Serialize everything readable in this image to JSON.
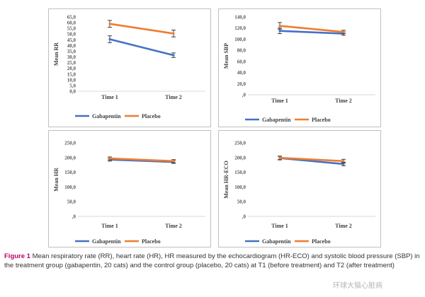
{
  "caption": {
    "label": "Figure 1",
    "text": "Mean respiratory rate (RR), heart rate (HR), HR measured by the echocardiogram (HR-ECO) and systolic blood pressure (SBP) in the treatment group (gabapentin, 20 cats) and the control group (placebo, 20 cats) at T1 (before treatment) and T2 (after treatment)"
  },
  "watermark": "环球大猫心脏病",
  "colors": {
    "gabapentin": "#4472C4",
    "placebo": "#ED7D31",
    "frame": "#bfbfbf"
  },
  "chart_data": [
    {
      "type": "line",
      "categories": [
        "Time 1",
        "Time 2"
      ],
      "ylabel": "Mean RR",
      "ylim": [
        0,
        65
      ],
      "yticks": [
        "0,0",
        "5,0",
        "10,0",
        "15,0",
        "20,0",
        "25,0",
        "30,0",
        "35,0",
        "40,0",
        "45,0",
        "50,0",
        "55,0",
        "60,0",
        "65,0"
      ],
      "legend": "bottom",
      "series": [
        {
          "name": "Gabapentin",
          "values": [
            45.5,
            31.5
          ],
          "errors": [
            3.0,
            2.0
          ]
        },
        {
          "name": "Placebo",
          "values": [
            59.0,
            50.5
          ],
          "errors": [
            3.0,
            3.0
          ]
        }
      ]
    },
    {
      "type": "line",
      "categories": [
        "Time 1",
        "Time 2"
      ],
      "ylabel": "Mean SBP",
      "ylim": [
        0,
        140
      ],
      "yticks": [
        ",0",
        "20,0",
        "40,0",
        "60,0",
        "80,0",
        "100,0",
        "120,0",
        "140,0"
      ],
      "legend": "bottom",
      "series": [
        {
          "name": "Gabapentin",
          "values": [
            115,
            110
          ],
          "errors": [
            5,
            3
          ]
        },
        {
          "name": "Placebo",
          "values": [
            124,
            113
          ],
          "errors": [
            6,
            3
          ]
        }
      ]
    },
    {
      "type": "line",
      "categories": [
        "Time 1",
        "Time 2"
      ],
      "ylabel": "Mean HR",
      "ylim": [
        0,
        250
      ],
      "yticks": [
        ",0",
        "50,0",
        "100,0",
        "150,0",
        "200,0",
        "250,0"
      ],
      "legend": "bottom",
      "series": [
        {
          "name": "Gabapentin",
          "values": [
            193,
            185
          ],
          "errors": [
            5,
            5
          ]
        },
        {
          "name": "Placebo",
          "values": [
            197,
            188
          ],
          "errors": [
            5,
            5
          ]
        }
      ]
    },
    {
      "type": "line",
      "categories": [
        "Time 1",
        "Time 2"
      ],
      "ylabel": "Mean HR-ECO",
      "ylim": [
        0,
        250
      ],
      "yticks": [
        ",0",
        "50,0",
        "100,0",
        "150,0",
        "200,0",
        "250,0"
      ],
      "legend": "bottom",
      "series": [
        {
          "name": "Gabapentin",
          "values": [
            198,
            178
          ],
          "errors": [
            6,
            6
          ]
        },
        {
          "name": "Placebo",
          "values": [
            199,
            188
          ],
          "errors": [
            6,
            6
          ]
        }
      ]
    }
  ]
}
